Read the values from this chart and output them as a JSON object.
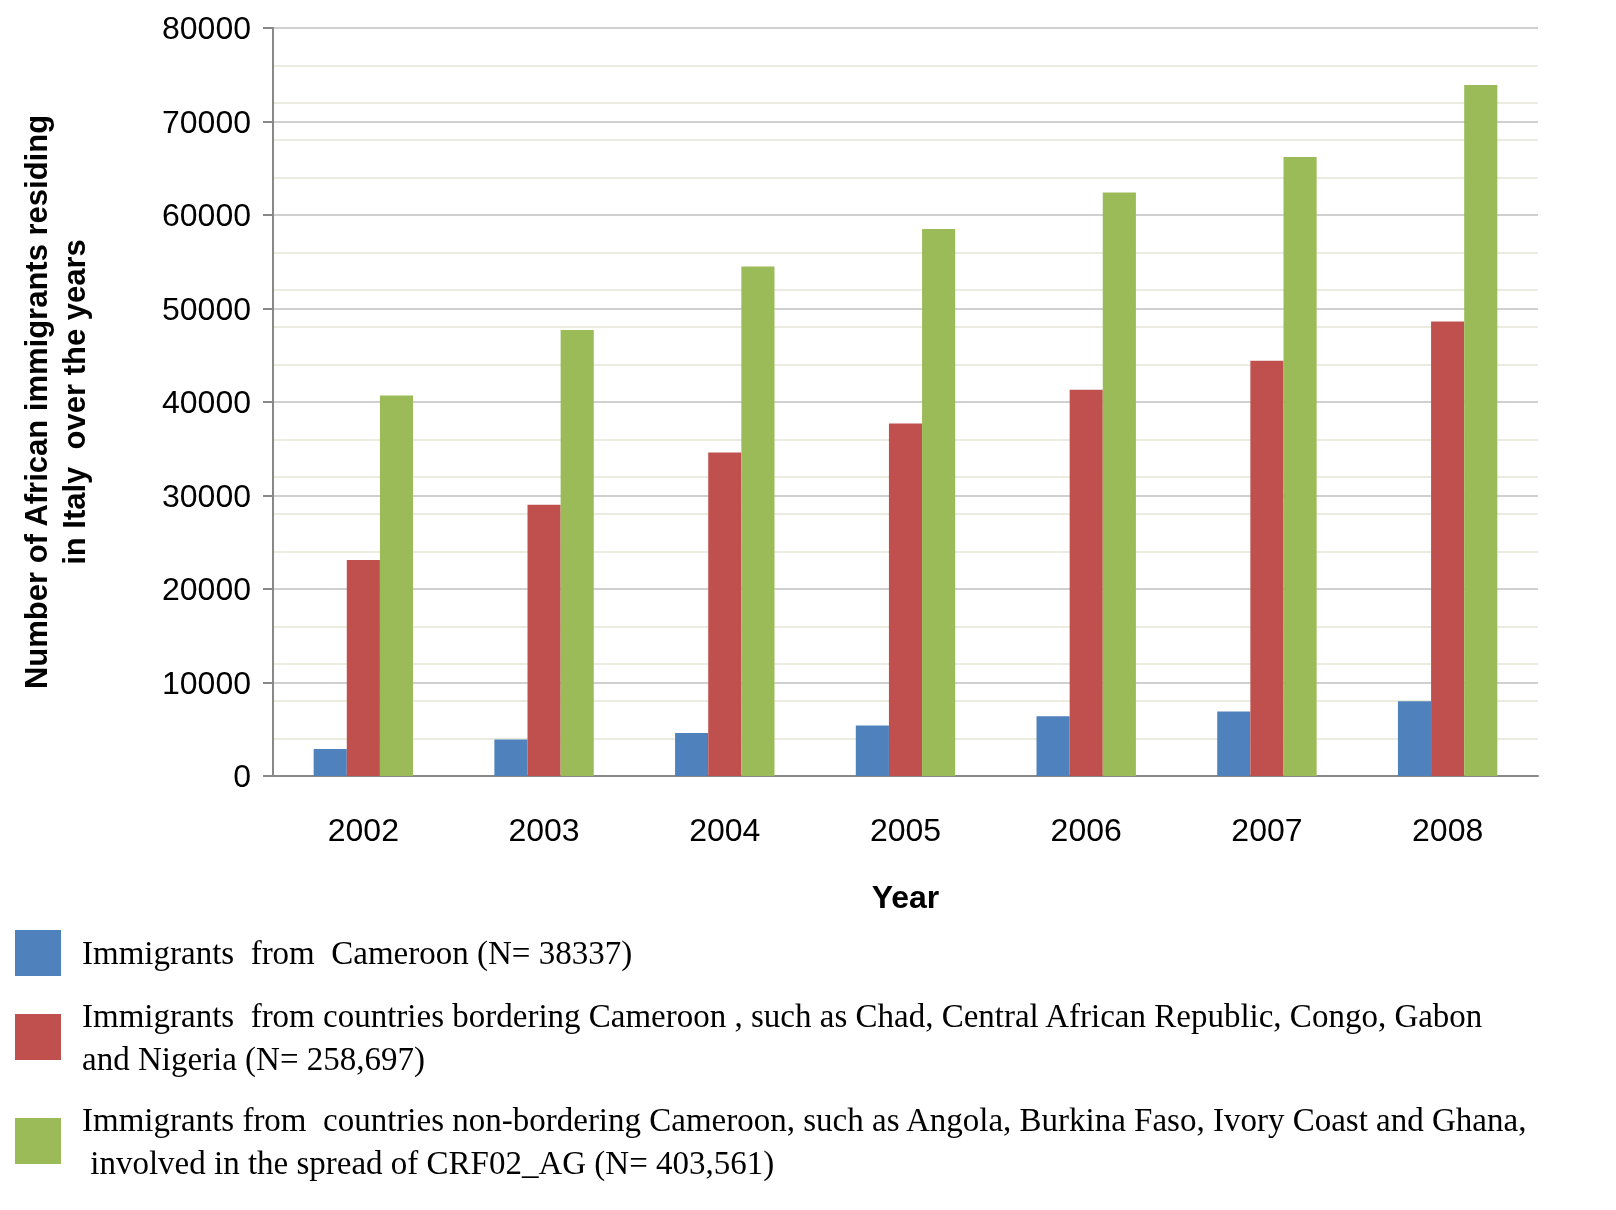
{
  "chart_data": {
    "type": "bar",
    "xlabel": "Year",
    "ylabel": "Number of African immigrants residing\nin Italy  over the years",
    "categories": [
      "2002",
      "2003",
      "2004",
      "2005",
      "2006",
      "2007",
      "2008"
    ],
    "series": [
      {
        "name": "Immigrants  from  Cameroon (N= 38337)",
        "color": "#4f81bd",
        "values": [
          2900,
          3900,
          4600,
          5400,
          6400,
          6900,
          8000
        ]
      },
      {
        "name": "Immigrants  from countries bordering Cameroon , such as Chad, Central African Republic, Congo, Gabon and Nigeria (N= 258,697)",
        "color": "#c0504d",
        "values": [
          23100,
          29000,
          34600,
          37700,
          41300,
          44400,
          48600
        ]
      },
      {
        "name": "Immigrants from  countries non-bordering Cameroon, such as Angola, Burkina Faso, Ivory Coast and Ghana, involved in the spread of CRF02_AG (N= 403,561)",
        "color": "#9bbb59",
        "values": [
          40700,
          47700,
          54500,
          58500,
          62400,
          66200,
          73900
        ]
      }
    ],
    "ylim": [
      0,
      80000
    ],
    "yticks": [
      0,
      10000,
      20000,
      30000,
      40000,
      50000,
      60000,
      70000,
      80000
    ],
    "grid": "y",
    "legend": "bottom"
  }
}
